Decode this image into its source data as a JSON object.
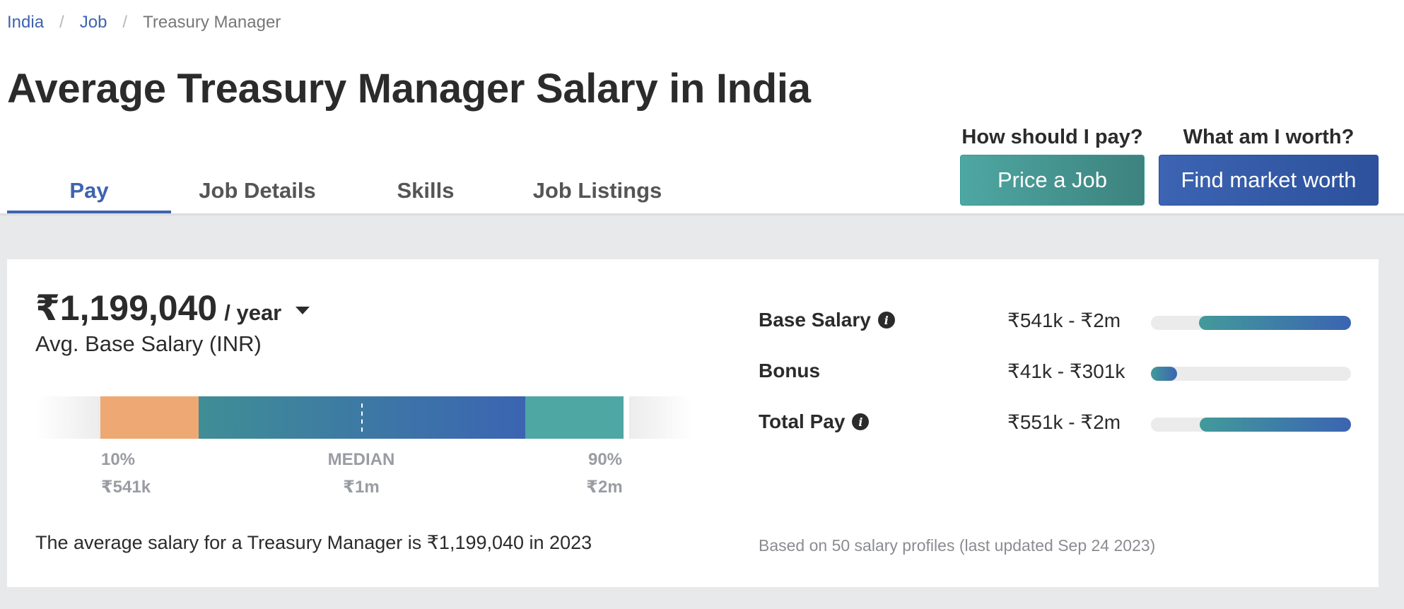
{
  "breadcrumb": {
    "items": [
      "India",
      "Job"
    ],
    "current": "Treasury Manager",
    "separator": "/"
  },
  "page_title": "Average Treasury Manager Salary in India",
  "tabs": [
    {
      "label": "Pay",
      "active": true
    },
    {
      "label": "Job Details",
      "active": false
    },
    {
      "label": "Skills",
      "active": false
    },
    {
      "label": "Job Listings",
      "active": false
    }
  ],
  "cta": {
    "price": {
      "question": "How should I pay?",
      "button": "Price a Job"
    },
    "worth": {
      "question": "What am I worth?",
      "button": "Find market worth"
    }
  },
  "salary": {
    "amount": "₹1,199,040",
    "period": "/ year",
    "label": "Avg. Base Salary (INR)",
    "percentiles": {
      "p10": {
        "label": "10%",
        "value": "₹541k"
      },
      "median": {
        "label": "MEDIAN",
        "value": "₹1m"
      },
      "p90": {
        "label": "90%",
        "value": "₹2m"
      }
    },
    "summary": "The average salary for a Treasury Manager is ₹1,199,040 in 2023"
  },
  "breakdown": [
    {
      "name": "Base Salary",
      "info": true,
      "range": "₹541k - ₹2m",
      "fill_start": 0.24,
      "fill_end": 1.0
    },
    {
      "name": "Bonus",
      "info": false,
      "range": "₹41k - ₹301k",
      "fill_start": 0.0,
      "fill_end": 0.13
    },
    {
      "name": "Total Pay",
      "info": true,
      "range": "₹551k - ₹2m",
      "fill_start": 0.245,
      "fill_end": 1.0
    }
  ],
  "footnote": "Based on 50 salary profiles (last updated Sep 24 2023)",
  "colors": {
    "accent_blue": "#3e63b0",
    "teal": "#4ea7a3",
    "orange": "#eea874"
  }
}
